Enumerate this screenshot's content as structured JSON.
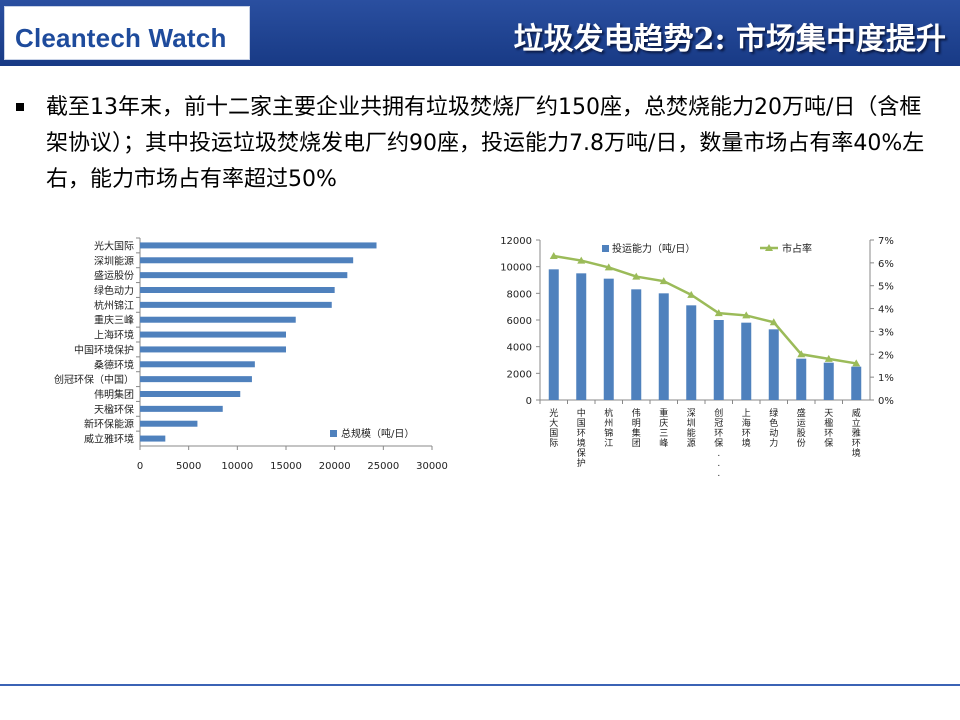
{
  "header": {
    "brand": "Cleantech Watch",
    "title": "垃圾发电趋势2: 市场集中度提升"
  },
  "body": {
    "text": "截至13年末，前十二家主要企业共拥有垃圾焚烧厂约150座，总焚烧能力20万吨/日（含框架协议）；其中投运垃圾焚烧发电厂约90座，投运能力7.8万吨/日，数量市场占有率40%左右，能力市场占有率超过50%"
  },
  "colors": {
    "header": "#1f438f",
    "bar": "#4f81bd",
    "line": "#9bbb59",
    "footer": "#3b63b5"
  },
  "chart_data": [
    {
      "type": "bar",
      "orientation": "horizontal",
      "categories": [
        "光大国际",
        "深圳能源",
        "盛运股份",
        "绿色动力",
        "杭州锦江",
        "重庆三峰",
        "上海环境",
        "中国环境保护",
        "桑德环境",
        "创冠环保（中国）",
        "伟明集团",
        "天楹环保",
        "新环保能源",
        "威立雅环境"
      ],
      "series": [
        {
          "name": "总规模（吨/日）",
          "values": [
            24300,
            21900,
            21300,
            20000,
            19700,
            16000,
            15000,
            15000,
            11800,
            11500,
            10300,
            8500,
            5900,
            2600
          ]
        }
      ],
      "xlim": [
        0,
        30000
      ],
      "xticks": [
        "0",
        "5000",
        "10000",
        "15000",
        "20000",
        "25000",
        "30000"
      ],
      "legend": "bottom-right"
    },
    {
      "type": "bar",
      "categories": [
        "光大国际",
        "中国环境保护",
        "杭州锦江",
        "伟明集团",
        "重庆三峰",
        "深圳能源",
        "创冠环保...",
        "上海环境",
        "绿色动力",
        "盛运股份",
        "天楹环保",
        "威立雅环境"
      ],
      "series": [
        {
          "name": "投运能力（吨/日）",
          "type": "bar",
          "axis": "left",
          "values": [
            9800,
            9500,
            9100,
            8300,
            8000,
            7100,
            6000,
            5800,
            5300,
            3100,
            2800,
            2500
          ]
        },
        {
          "name": "市占率",
          "type": "line",
          "axis": "right",
          "values": [
            6.3,
            6.1,
            5.8,
            5.4,
            5.2,
            4.6,
            3.8,
            3.7,
            3.4,
            2.0,
            1.8,
            1.6
          ]
        }
      ],
      "ylim": [
        0,
        12000
      ],
      "yticks": [
        "0",
        "2000",
        "4000",
        "6000",
        "8000",
        "10000",
        "12000"
      ],
      "y2lim": [
        0,
        7
      ],
      "y2ticks": [
        "0%",
        "1%",
        "2%",
        "3%",
        "4%",
        "5%",
        "6%",
        "7%"
      ],
      "legend": "top"
    }
  ]
}
